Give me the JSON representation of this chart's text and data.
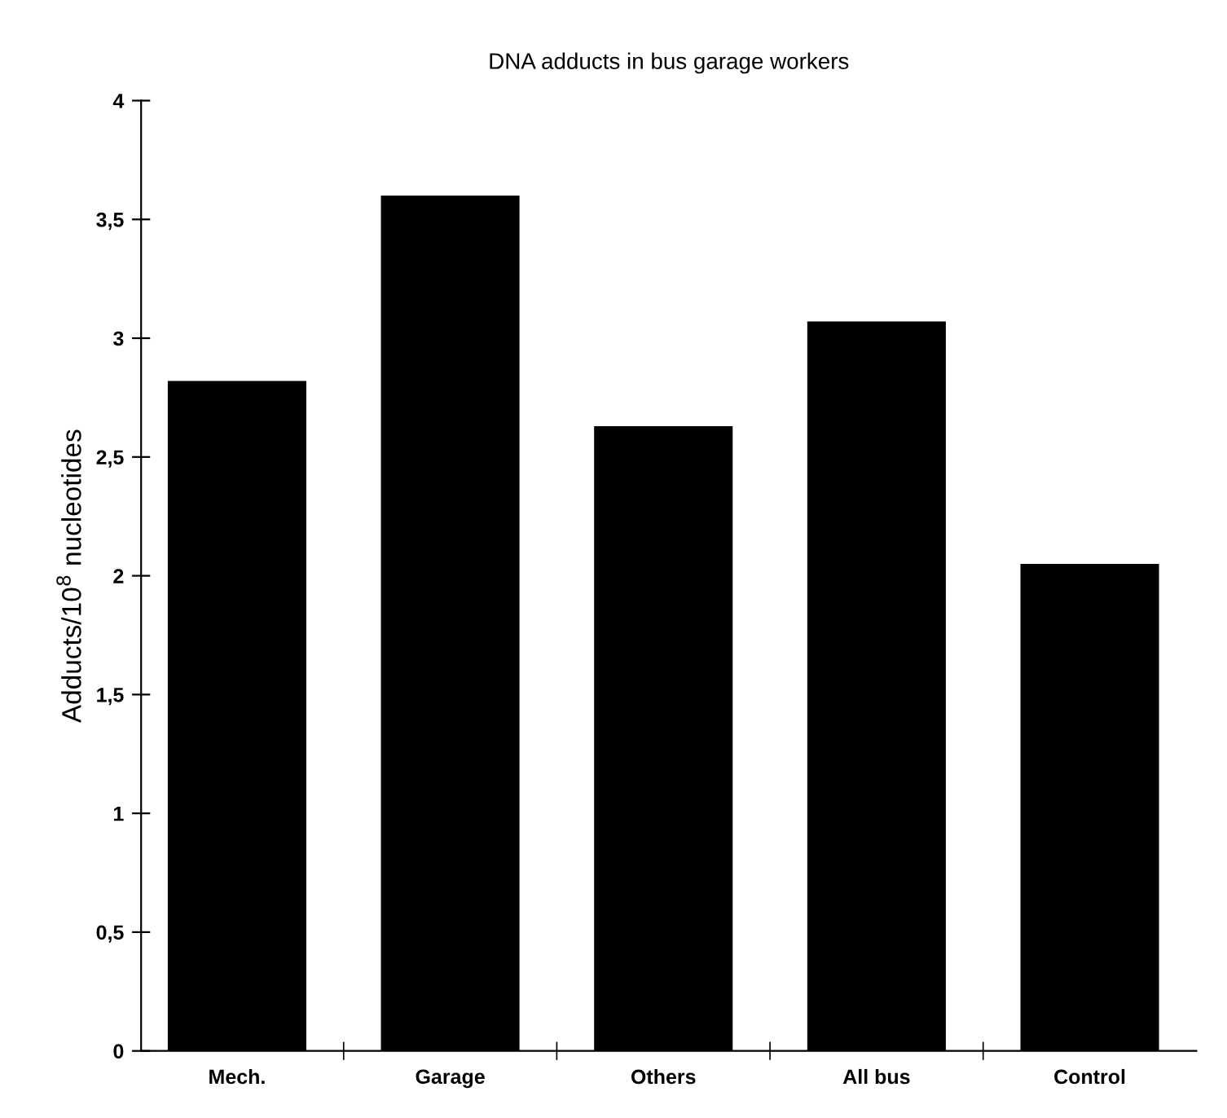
{
  "chart_data": {
    "type": "bar",
    "title": "DNA adducts in bus garage workers",
    "ylabel": "Adducts/10$^{8}$ nucleotides",
    "categories": [
      "Mech.",
      "Garage",
      "Others",
      "All bus",
      "Control"
    ],
    "values": [
      2.82,
      3.6,
      2.63,
      3.07,
      2.05
    ],
    "color": "#000000",
    "ylim": [
      0,
      4
    ],
    "yticks": [
      0,
      {
        "value": 0.5,
        "label": "0,5"
      },
      1,
      {
        "value": 1.5,
        "label": "1,5"
      },
      2,
      {
        "value": 2.5,
        "label": "2,5"
      },
      3,
      {
        "value": 3.5,
        "label": "3,5"
      },
      4
    ],
    "grid": false
  }
}
